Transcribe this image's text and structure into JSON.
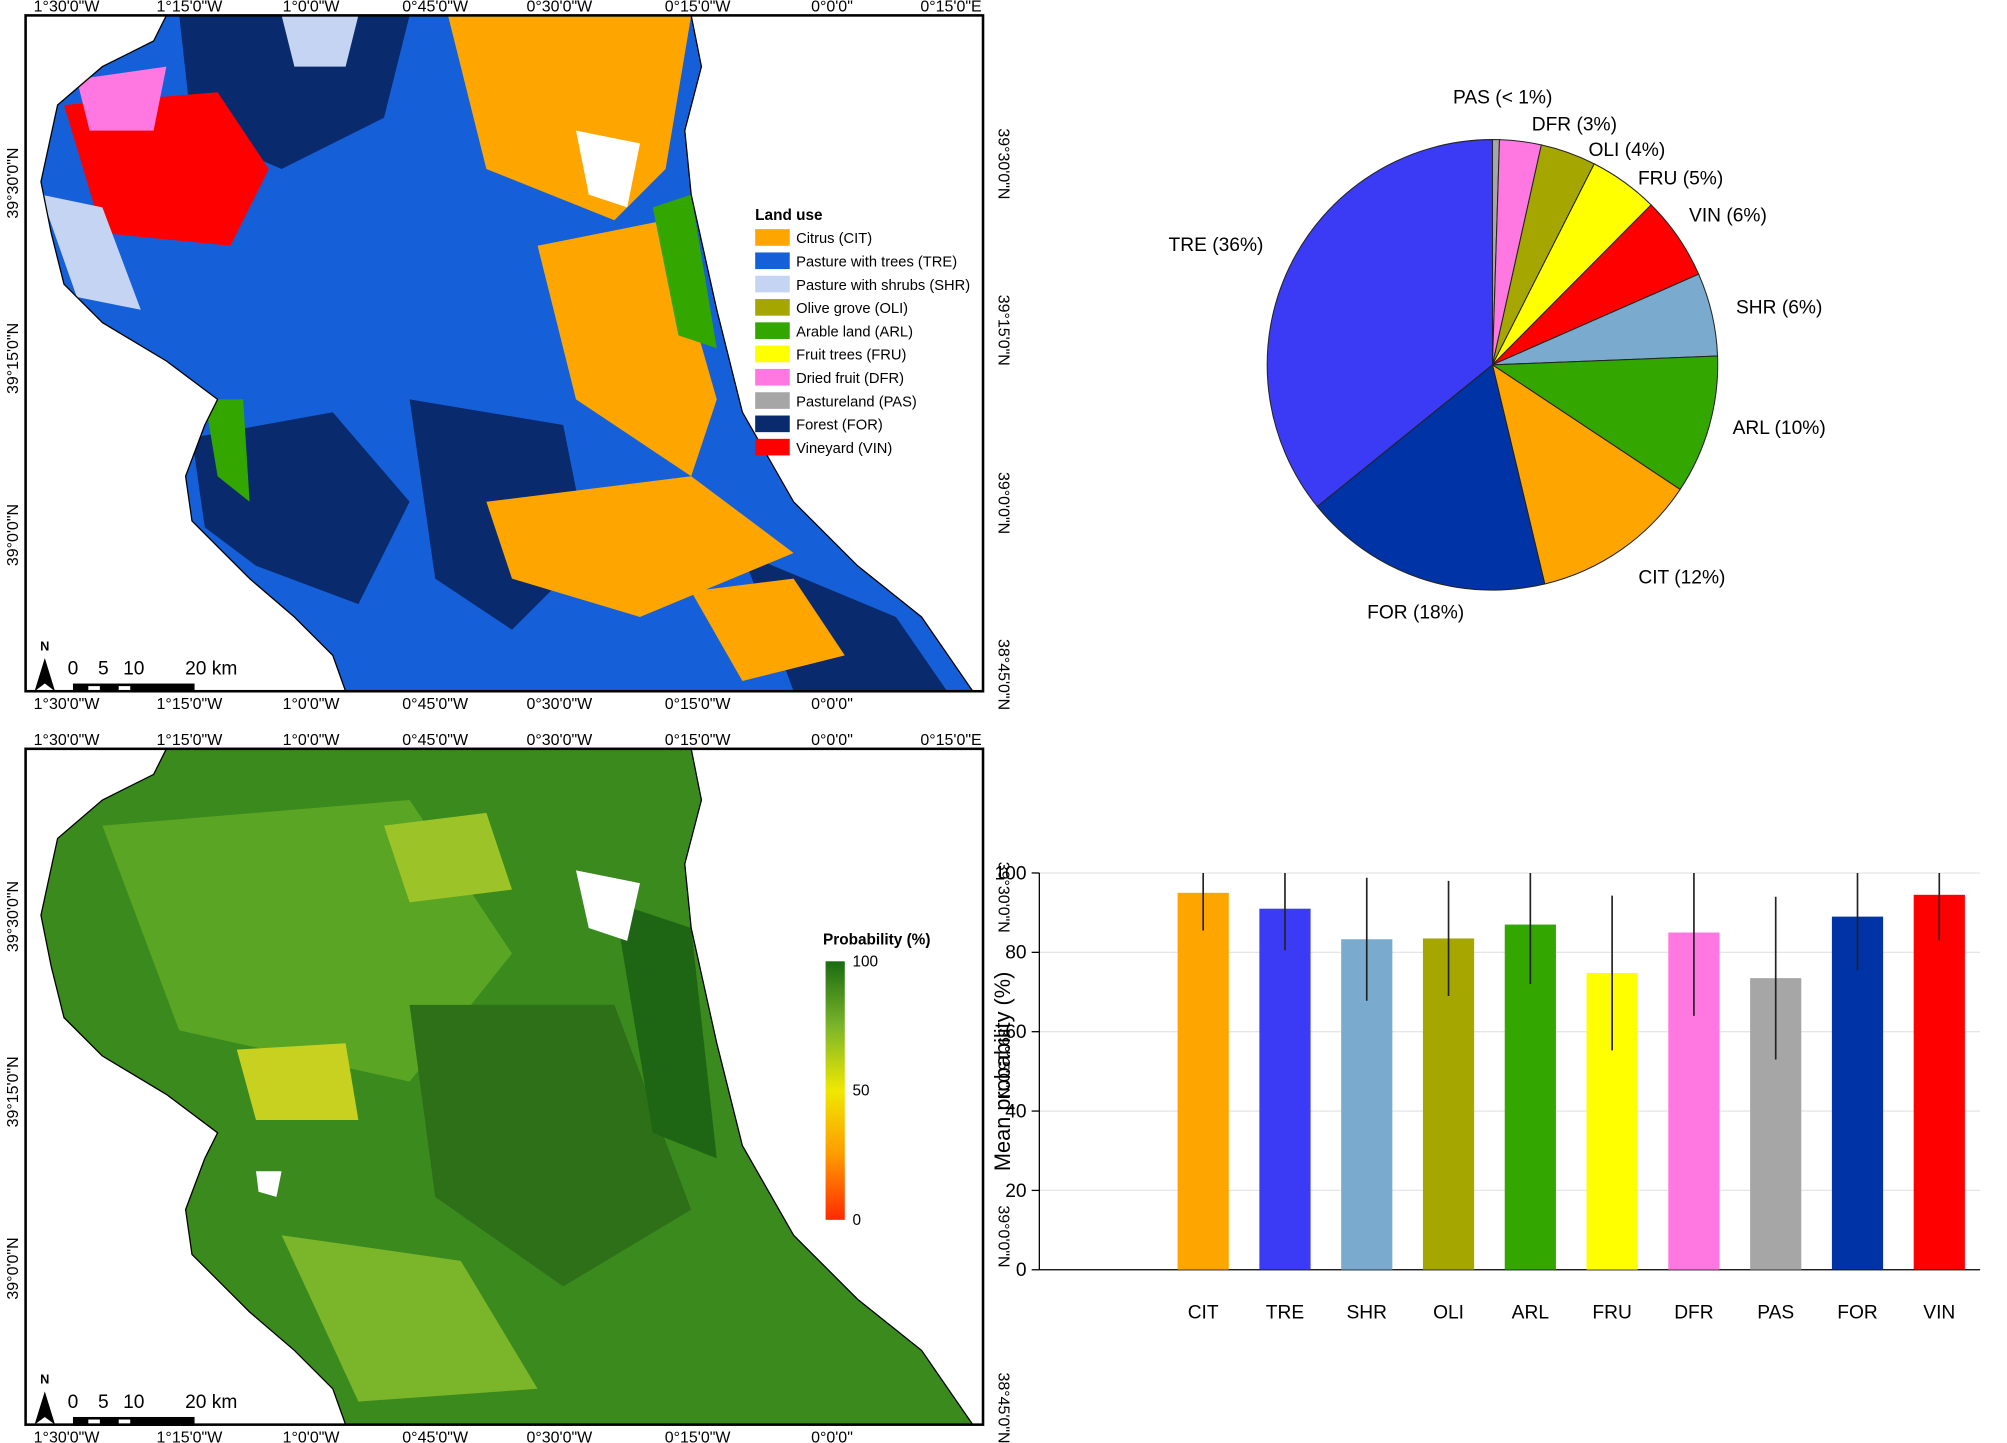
{
  "maps": [
    {
      "top_labels": [
        "1°30'0\"W",
        "1°15'0\"W",
        "1°0'0\"W",
        "0°45'0\"W",
        "0°30'0\"W",
        "0°15'0\"W",
        "0°0'0\"",
        "0°15'0\"E"
      ],
      "bottom_labels": [
        "1°30'0\"W",
        "1°15'0\"W",
        "1°0'0\"W",
        "0°45'0\"W",
        "0°30'0\"W",
        "0°15'0\"W",
        "0°0'0\""
      ],
      "left_labels": [
        "39°30'0\"N",
        "39°15'0\"N",
        "39°0'0\"N"
      ],
      "right_labels": [
        "39°30'0\"N",
        "39°15'0\"N",
        "39°0'0\"N",
        "38°45'0\"N"
      ],
      "scale_bar": {
        "north": "N",
        "ticks": [
          0,
          5,
          10,
          {
            "value": 20,
            "label": "20 km"
          }
        ]
      },
      "legend": {
        "title": "Land use",
        "items": [
          {
            "label": "Citrus (CIT)",
            "color": "#ffa500"
          },
          {
            "label": "Pasture with trees (TRE)",
            "color": "#1560d8"
          },
          {
            "label": "Pasture with shrubs (SHR)",
            "color": "#c4d4f2"
          },
          {
            "label": "Olive grove (OLI)",
            "color": "#a6a600"
          },
          {
            "label": "Arable land (ARL)",
            "color": "#33a600"
          },
          {
            "label": "Fruit trees (FRU)",
            "color": "#ffff00"
          },
          {
            "label": "Dried fruit (DFR)",
            "color": "#ff77e0"
          },
          {
            "label": "Pastureland (PAS)",
            "color": "#a6a6a6"
          },
          {
            "label": "Forest (FOR)",
            "color": "#0a2a6e"
          },
          {
            "label": "Vineyard (VIN)",
            "color": "#ff0000"
          }
        ]
      }
    },
    {
      "top_labels": [
        "1°30'0\"W",
        "1°15'0\"W",
        "1°0'0\"W",
        "0°45'0\"W",
        "0°30'0\"W",
        "0°15'0\"W",
        "0°0'0\"",
        "0°15'0\"E"
      ],
      "bottom_labels": [
        "1°30'0\"W",
        "1°15'0\"W",
        "1°0'0\"W",
        "0°45'0\"W",
        "0°30'0\"W",
        "0°15'0\"W",
        "0°0'0\""
      ],
      "left_labels": [
        "39°30'0\"N",
        "39°15'0\"N",
        "39°0'0\"N"
      ],
      "right_labels": [
        "39°30'0\"N",
        "39°15'0\"N",
        "39°0'0\"N",
        "38°45'0\"N"
      ],
      "scale_bar": {
        "north": "N",
        "ticks": [
          0,
          5,
          10,
          {
            "value": 20,
            "label": "20 km"
          }
        ]
      },
      "colorbar": {
        "title": "Probability (%)",
        "range": [
          0,
          100
        ],
        "ticks": [
          100,
          50,
          0
        ]
      }
    }
  ],
  "chart_data": [
    {
      "type": "pie",
      "values": [
        0.5,
        3,
        4,
        5,
        6,
        6,
        10,
        12,
        18,
        36
      ],
      "value_labels": [
        "PAS (< 1%)",
        "DFR (3%)",
        "OLI (4%)",
        "FRU (5%)",
        "VIN (6%)",
        "SHR (6%)",
        "ARL (10%)",
        "CIT (12%)",
        "FOR (18%)",
        "TRE (36%)"
      ],
      "colors": [
        "#a6a6a6",
        "#ff77e0",
        "#a6a600",
        "#ffff00",
        "#ff0000",
        "#7aabcf",
        "#33a600",
        "#ffa500",
        "#0033a6",
        "#3b3bf5"
      ]
    },
    {
      "type": "bar",
      "y_label": "Mean probability (%)",
      "categories": [
        "CIT",
        "TRE",
        "SHR",
        "OLI",
        "ARL",
        "FRU",
        "DFR",
        "PAS",
        "FOR",
        "VIN"
      ],
      "values": [
        95,
        91,
        83.3,
        83.5,
        87,
        74.8,
        85,
        73.5,
        89,
        94.5
      ],
      "errors": [
        9.5,
        10.5,
        15.5,
        14.5,
        15,
        19.5,
        21,
        20.5,
        13.5,
        11.5
      ],
      "colors": [
        "#ffa500",
        "#3b3bf5",
        "#7aabcf",
        "#a6a600",
        "#33a600",
        "#ffff00",
        "#ff77e0",
        "#a6a6a6",
        "#0033a6",
        "#ff0000"
      ],
      "ylim": [
        0,
        100
      ],
      "yticks": [
        0,
        20,
        40,
        60,
        80,
        100
      ],
      "grid": true
    }
  ]
}
